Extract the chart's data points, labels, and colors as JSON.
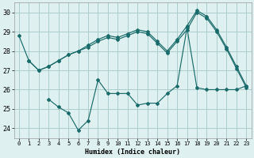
{
  "xlabel": "Humidex (Indice chaleur)",
  "background_color": "#dff0f0",
  "grid_color": "#aacccc",
  "line_color": "#1a6b6b",
  "xlim": [
    -0.5,
    23.5
  ],
  "ylim": [
    23.5,
    30.5
  ],
  "yticks": [
    24,
    25,
    26,
    27,
    28,
    29,
    30
  ],
  "xticks": [
    0,
    1,
    2,
    3,
    4,
    5,
    6,
    7,
    8,
    9,
    10,
    11,
    12,
    13,
    14,
    15,
    16,
    17,
    18,
    19,
    20,
    21,
    22,
    23
  ],
  "series": [
    {
      "x": [
        0,
        1,
        2,
        3,
        4,
        5,
        6,
        7,
        8,
        9,
        10,
        11,
        12,
        13,
        14,
        15,
        16,
        17,
        18,
        19,
        20,
        21,
        22,
        23
      ],
      "y": [
        28.8,
        27.5,
        27.0,
        27.2,
        27.5,
        27.8,
        28.0,
        28.3,
        28.6,
        28.8,
        28.7,
        28.9,
        29.1,
        29.0,
        28.5,
        28.0,
        28.6,
        29.3,
        30.1,
        29.8,
        29.1,
        28.2,
        27.2,
        26.2
      ]
    },
    {
      "x": [
        1,
        2,
        3,
        4,
        5,
        6,
        7,
        8,
        9,
        10,
        11,
        12,
        13,
        14,
        15,
        16,
        17,
        18,
        19,
        20,
        21,
        22,
        23
      ],
      "y": [
        27.5,
        27.0,
        27.2,
        27.5,
        27.8,
        28.0,
        28.2,
        28.5,
        28.7,
        28.6,
        28.8,
        29.0,
        28.9,
        28.4,
        27.9,
        28.5,
        29.1,
        30.0,
        29.7,
        29.0,
        28.1,
        27.1,
        26.1
      ]
    },
    {
      "x": [
        3,
        4,
        5,
        6,
        7,
        8,
        9,
        10,
        11,
        12,
        13,
        14,
        15,
        16,
        17,
        18,
        19,
        20,
        21,
        22,
        23
      ],
      "y": [
        25.5,
        25.1,
        24.8,
        23.9,
        24.4,
        26.5,
        25.8,
        25.8,
        25.8,
        25.2,
        25.3,
        25.3,
        25.8,
        26.2,
        29.2,
        26.1,
        26.0,
        26.0,
        26.0,
        26.0,
        26.2
      ]
    }
  ]
}
